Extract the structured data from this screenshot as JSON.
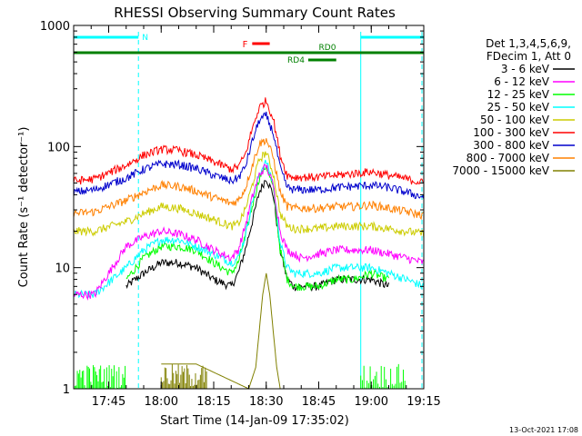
{
  "chart_data": {
    "type": "line",
    "title": "RHESSI Observing Summary Count Rates",
    "xlabel": "Start Time (14-Jan-09 17:35:02)",
    "ylabel": "Count Rate (s⁻¹ detector⁻¹)",
    "x_unit": "minutes since 17:35:02",
    "xlim": [
      0,
      100
    ],
    "ylim": [
      1,
      1000
    ],
    "yscale": "log",
    "x_ticks": [
      {
        "x": 10,
        "label": "17:45"
      },
      {
        "x": 25,
        "label": "18:00"
      },
      {
        "x": 40,
        "label": "18:15"
      },
      {
        "x": 55,
        "label": "18:30"
      },
      {
        "x": 70,
        "label": "18:45"
      },
      {
        "x": 85,
        "label": "19:00"
      },
      {
        "x": 100,
        "label": "19:15"
      }
    ],
    "y_ticks": [
      {
        "y": 1,
        "label": "1"
      },
      {
        "y": 10,
        "label": "10"
      },
      {
        "y": 100,
        "label": "100"
      },
      {
        "y": 1000,
        "label": "1000"
      }
    ],
    "legend": {
      "placement": "right",
      "header": [
        "Det 1,3,4,5,6,9,",
        "FDecim 1, Att 0"
      ]
    },
    "series": [
      {
        "name": "3 - 6 keV",
        "color": "#000000",
        "x": [
          15,
          20,
          25,
          30,
          35,
          40,
          45,
          47,
          49,
          51,
          53,
          55,
          57,
          59,
          61,
          63,
          65,
          70,
          75,
          80,
          85,
          90
        ],
        "y": [
          7,
          9,
          11,
          11,
          10,
          8,
          7,
          9,
          14,
          24,
          42,
          55,
          40,
          14,
          8,
          7,
          7,
          7,
          8,
          8,
          8,
          7
        ]
      },
      {
        "name": "6 - 12 keV",
        "color": "#ff00ff",
        "x": [
          0,
          6,
          15,
          20,
          25,
          30,
          35,
          40,
          45,
          47,
          49,
          51,
          53,
          55,
          57,
          59,
          61,
          63,
          65,
          70,
          75,
          80,
          85,
          90,
          95,
          100
        ],
        "y": [
          6,
          6,
          15,
          18,
          20,
          19,
          17,
          14,
          12,
          14,
          22,
          38,
          58,
          70,
          48,
          20,
          14,
          13,
          12,
          13,
          14,
          14,
          14,
          13,
          12,
          11
        ]
      },
      {
        "name": "12 - 25 keV",
        "color": "#00ff00",
        "x": [
          15,
          20,
          25,
          30,
          35,
          40,
          45,
          47,
          49,
          51,
          53,
          55,
          57,
          59,
          61,
          63,
          65,
          70,
          75,
          80,
          85,
          90
        ],
        "y": [
          8,
          12,
          15,
          15,
          14,
          11,
          9,
          11,
          18,
          32,
          55,
          70,
          45,
          14,
          8,
          7,
          7,
          7,
          8,
          8,
          9,
          8
        ]
      },
      {
        "name": "25 - 50 keV",
        "color": "#00ffff",
        "x": [
          0,
          6,
          15,
          20,
          25,
          30,
          35,
          40,
          45,
          47,
          49,
          51,
          53,
          55,
          57,
          59,
          61,
          63,
          65,
          70,
          75,
          80,
          85,
          90,
          95,
          100
        ],
        "y": [
          6,
          6,
          10,
          14,
          17,
          17,
          15,
          13,
          11,
          12,
          18,
          35,
          60,
          75,
          50,
          16,
          10,
          9,
          9,
          9,
          10,
          10,
          10,
          9,
          8,
          7
        ]
      },
      {
        "name": "50 - 100 keV",
        "color": "#cccc00",
        "x": [
          0,
          6,
          15,
          20,
          25,
          30,
          35,
          40,
          45,
          47,
          49,
          51,
          53,
          55,
          57,
          59,
          61,
          63,
          65,
          70,
          75,
          80,
          85,
          90,
          95,
          100
        ],
        "y": [
          20,
          20,
          24,
          28,
          32,
          31,
          28,
          25,
          22,
          23,
          30,
          48,
          78,
          90,
          60,
          28,
          22,
          21,
          21,
          21,
          22,
          22,
          22,
          21,
          20,
          19
        ]
      },
      {
        "name": "100 - 300 keV",
        "color": "#ff0000",
        "x": [
          0,
          6,
          15,
          20,
          25,
          30,
          35,
          40,
          45,
          47,
          49,
          51,
          53,
          55,
          57,
          59,
          61,
          63,
          65,
          70,
          75,
          80,
          85,
          90,
          95,
          100
        ],
        "y": [
          52,
          54,
          70,
          85,
          95,
          93,
          85,
          75,
          65,
          68,
          85,
          140,
          210,
          240,
          170,
          85,
          58,
          56,
          56,
          56,
          58,
          60,
          62,
          58,
          54,
          50
        ]
      },
      {
        "name": "300 - 800 keV",
        "color": "#0000cc",
        "x": [
          0,
          6,
          15,
          20,
          25,
          30,
          35,
          40,
          45,
          47,
          49,
          51,
          53,
          55,
          57,
          59,
          61,
          63,
          65,
          70,
          75,
          80,
          85,
          90,
          95,
          100
        ],
        "y": [
          42,
          44,
          55,
          65,
          72,
          71,
          66,
          58,
          52,
          55,
          68,
          110,
          165,
          180,
          130,
          66,
          46,
          44,
          44,
          44,
          46,
          47,
          48,
          46,
          42,
          38
        ]
      },
      {
        "name": "800 - 7000 keV",
        "color": "#ff8000",
        "x": [
          0,
          6,
          15,
          20,
          25,
          30,
          35,
          40,
          45,
          47,
          49,
          51,
          53,
          55,
          57,
          59,
          61,
          63,
          65,
          70,
          75,
          80,
          85,
          90,
          95,
          100
        ],
        "y": [
          28,
          29,
          36,
          42,
          48,
          47,
          43,
          38,
          34,
          36,
          45,
          70,
          105,
          115,
          82,
          42,
          32,
          31,
          31,
          31,
          32,
          32,
          33,
          31,
          29,
          27
        ]
      },
      {
        "name": "7000 - 15000 keV",
        "color": "#808000",
        "x": [
          25,
          35,
          50,
          52,
          53,
          54,
          55,
          56,
          57,
          58,
          59,
          60
        ],
        "y": [
          1.6,
          1.6,
          1,
          1.5,
          3,
          6,
          9,
          6,
          3,
          1.5,
          1,
          1
        ]
      }
    ],
    "annotations": {
      "night_bars": [
        {
          "label": "N",
          "x_start": 0,
          "x_end": 18.5
        },
        {
          "label": "",
          "x_start": 82,
          "x_end": 100
        }
      ],
      "flare_flag": {
        "label": "F",
        "x_start": 51,
        "x_end": 56
      },
      "rd0": {
        "label": "RD0",
        "x_start": 0,
        "x_end": 100
      },
      "rd4": {
        "label": "RD4",
        "x_start": 67,
        "x_end": 75
      }
    },
    "footer_date": "13-Oct-2021 17:08"
  }
}
